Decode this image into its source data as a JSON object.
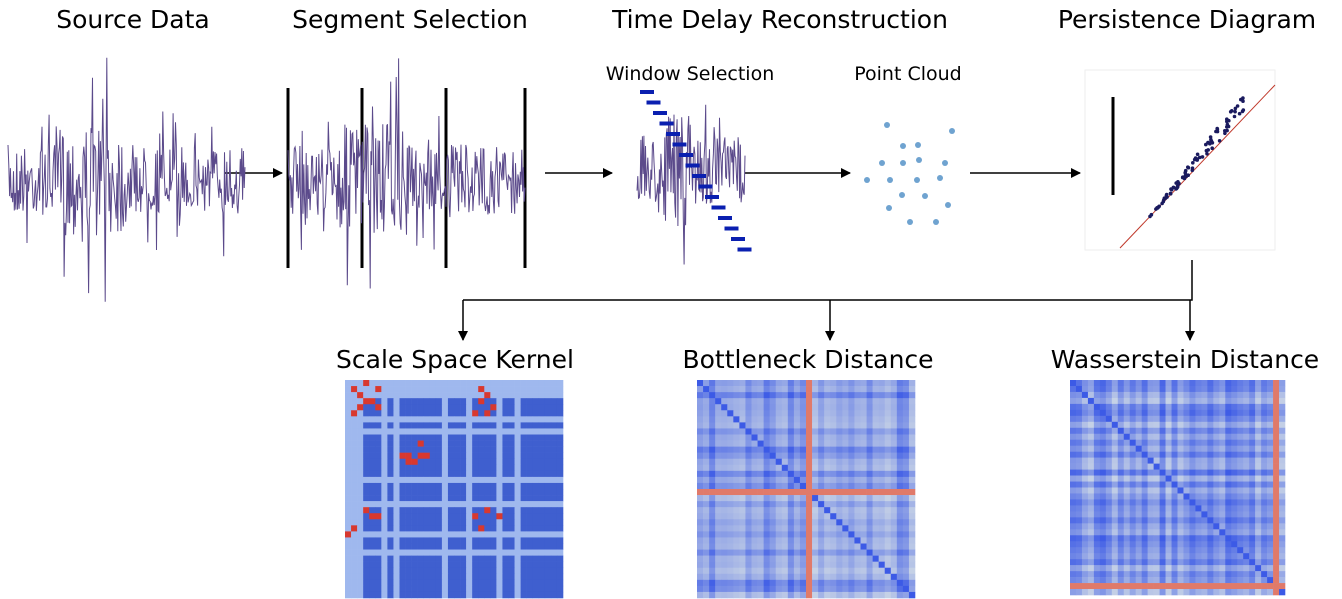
{
  "stages": [
    {
      "label": "Source Data"
    },
    {
      "label": "Segment Selection"
    },
    {
      "label": "Time Delay Reconstruction"
    },
    {
      "label": "Persistence Diagram"
    }
  ],
  "sublabels": [
    {
      "label": "Window Selection"
    },
    {
      "label": "Point Cloud"
    }
  ],
  "outputs": [
    {
      "label": "Scale Space Kernel"
    },
    {
      "label": "Bottleneck Distance"
    },
    {
      "label": "Wasserstein Distance"
    }
  ]
}
